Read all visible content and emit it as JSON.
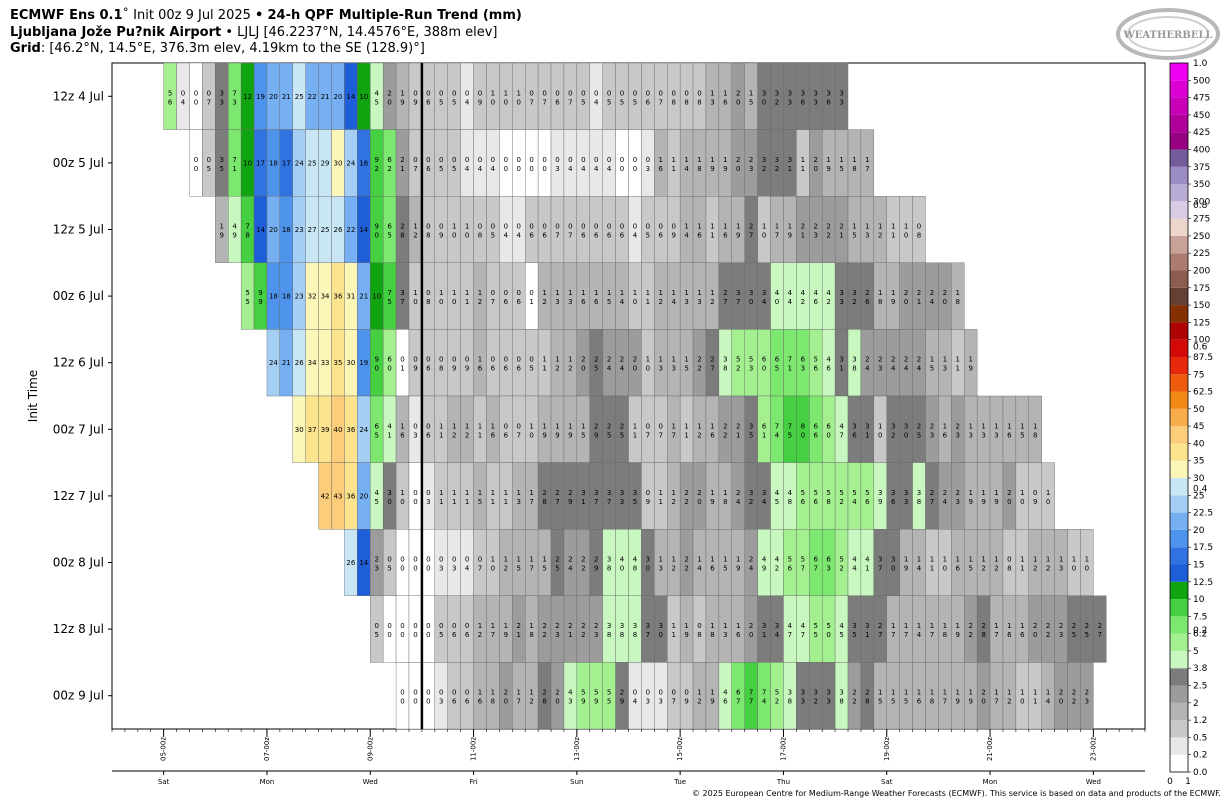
{
  "header": {
    "model": "ECMWF Ens 0.1",
    "init": "Init 00z 9 Jul 2025",
    "sep": "•",
    "product": "24-h QPF Multiple-Run Trend (mm)",
    "location_name": "Ljubljana Jože Pu?nik Airport",
    "location_detail": "LJLJ [46.2237°N, 14.4576°E, 388m elev]",
    "grid_label": "Grid",
    "grid_detail": ": [46.2°N, 14.5°E, 376.3m elev, 4.19km to the SE (128.9)°]"
  },
  "logo_text": "WEATHERBELL",
  "copyright": "© 2025 European Centre for Medium-Range Weather Forecasts (ECMWF). This service is based on data and products of the ECMWF.",
  "chart_data": {
    "type": "heatmap",
    "ylabel": "Init Time",
    "y_rows": [
      "12z 4 Jul",
      "00z 5 Jul",
      "12z 5 Jul",
      "00z 6 Jul",
      "12z 6 Jul",
      "00z 7 Jul",
      "12z 7 Jul",
      "00z 8 Jul",
      "12z 8 Jul",
      "00z 9 Jul"
    ],
    "x_ticks": [
      "05-00z",
      "07-00z",
      "09-00z",
      "11-00z",
      "13-00z",
      "15-00z",
      "17-00z",
      "19-00z",
      "21-00z",
      "23-00z"
    ],
    "x_days": [
      "Sat",
      "Mon",
      "Wed",
      "Fri",
      "Sun",
      "Tue",
      "Thu",
      "Sat",
      "Mon",
      "Wed"
    ],
    "x_step_hours": 6,
    "current_init": "00z 9 Jul",
    "rows": [
      {
        "start": 4,
        "values": [
          5.6,
          0.4,
          0,
          0.7,
          3.3,
          7.3,
          12,
          19,
          20,
          21,
          25,
          22,
          21,
          20,
          14,
          10,
          4.5,
          2,
          1.9,
          0.9,
          0.6,
          0.5,
          0.5,
          0.4,
          0.9,
          1,
          1,
          1,
          0.7,
          0.7,
          0.6,
          0.7,
          0.5,
          0.4,
          0.5,
          0.5,
          0.5,
          0.6,
          0.7,
          0.8,
          0.8,
          0.8,
          1.3,
          1.6,
          2,
          1.5,
          3,
          3.2,
          3.3,
          3.6,
          3.3,
          3.6,
          3.3
        ]
      },
      {
        "start": 6,
        "values": [
          0,
          0.5,
          3.5,
          7.1,
          10,
          17,
          18,
          17,
          24,
          25,
          29,
          30,
          24,
          16,
          9.2,
          6.2,
          2.1,
          0.7,
          0.6,
          0.5,
          0.5,
          0.4,
          0.4,
          0.4,
          0,
          0,
          0,
          0,
          0.3,
          0.4,
          0.4,
          0.4,
          0.4,
          0,
          0,
          0.3,
          1.6,
          1.1,
          1.4,
          1.8,
          1.9,
          1.9,
          2,
          2.3,
          3.2,
          3.2,
          3.1,
          1.1,
          2,
          1.9,
          1.5,
          1.8,
          1.7
        ]
      },
      {
        "start": 8,
        "values": [
          1.9,
          4.9,
          7.8,
          14,
          20,
          18,
          23,
          27,
          25,
          26,
          22,
          14,
          9,
          6.5,
          2.8,
          1.2,
          0.8,
          0.9,
          1,
          1,
          0.8,
          0.5,
          0.4,
          0.4,
          0.6,
          0.6,
          0.7,
          0.7,
          0.6,
          0.6,
          0.6,
          0.6,
          0.4,
          0.5,
          0.6,
          0.9,
          1.4,
          1.6,
          1.1,
          1.6,
          1.9,
          2.7,
          1,
          1.7,
          1.9,
          2.1,
          2.3,
          2.2,
          2.1,
          1.5,
          1.3,
          1.2,
          1.1,
          1,
          0.8
        ]
      },
      {
        "start": 10,
        "values": [
          5.5,
          9.9,
          18,
          18,
          23,
          32,
          34,
          36,
          31,
          21,
          10,
          7.5,
          3.7,
          1,
          0.8,
          1,
          1,
          1.1,
          1.2,
          0.7,
          0.6,
          0.6,
          0.1,
          1.2,
          1.3,
          1.3,
          1.6,
          1.6,
          1.5,
          1.4,
          1,
          1.1,
          1.2,
          1.4,
          1.3,
          1.3,
          1.2,
          2.7,
          3.7,
          3,
          3.4,
          4,
          4.4,
          4.2,
          4.6,
          4.2,
          3.3,
          3.2,
          2.6,
          1.8,
          1.9,
          2,
          2.1,
          2.4,
          2,
          1.8
        ]
      },
      {
        "start": 12,
        "values": [
          24,
          21,
          26,
          34,
          33,
          35,
          30,
          19,
          9,
          6,
          0.1,
          0.9,
          0.6,
          0.8,
          0.9,
          0.9,
          1.6,
          0.6,
          0.6,
          0.6,
          0.5,
          1.1,
          1.2,
          1.2,
          2,
          2.5,
          2.4,
          2.4,
          2,
          1,
          1.3,
          1.3,
          1.5,
          2.2,
          2.7,
          3.8,
          5.2,
          5.3,
          6,
          6.5,
          7.1,
          6.3,
          5.6,
          4.6,
          3.1,
          3.8,
          2.4,
          2.3,
          2.4,
          2.4,
          2.4,
          1.5,
          1.3,
          1.1,
          1.9
        ]
      },
      {
        "start": 14,
        "values": [
          30,
          37,
          39,
          40,
          36,
          24,
          6.5,
          4.1,
          1.6,
          0.3,
          0.6,
          1.1,
          1.2,
          1.2,
          1.1,
          1.6,
          0.6,
          0.7,
          1,
          1.9,
          1.9,
          1.9,
          1.5,
          2.9,
          2.5,
          2.5,
          1.1,
          0.7,
          0.7,
          1.7,
          1.1,
          1.2,
          1.6,
          2.2,
          2.1,
          3.5,
          6.1,
          7.4,
          7.5,
          8,
          6.6,
          6,
          4.7,
          3.6,
          3.1,
          1,
          3.2,
          3,
          2.5,
          2.3,
          1.6,
          2.3,
          1.3,
          1.3,
          1.3,
          1.6,
          1.5,
          1.8
        ]
      },
      {
        "start": 16,
        "values": [
          42,
          43,
          36,
          20,
          4.5,
          3,
          1,
          0,
          0.3,
          1.1,
          1.1,
          1.1,
          1.5,
          1.1,
          1.1,
          1.3,
          1.7,
          2.8,
          2.7,
          2.9,
          3.1,
          3.7,
          3.7,
          3.3,
          3.5,
          0.9,
          1.1,
          1.2,
          2.2,
          2,
          1.9,
          1.8,
          2.4,
          3.2,
          3.4,
          4.5,
          4.8,
          5.6,
          5.6,
          5.8,
          5.2,
          5.4,
          5.6,
          3.9,
          3.6,
          3.3,
          3.8,
          2.7,
          2.4,
          2.3,
          1.9,
          1.9,
          1.9,
          2,
          1,
          0.9,
          1
        ]
      },
      {
        "start": 18,
        "values": [
          26,
          14,
          2.3,
          0.5,
          0,
          0,
          0,
          0.3,
          0.3,
          0.4,
          0.7,
          1,
          1.2,
          1.5,
          1.7,
          1.5,
          2.5,
          2.4,
          2.2,
          2.9,
          3.8,
          4,
          4.8,
          3,
          1.3,
          1.2,
          2.2,
          1.4,
          1.6,
          1.5,
          1.9,
          2.4,
          4.9,
          4.2,
          5.6,
          5.7,
          6.7,
          6.3,
          5.2,
          4.4,
          4.1,
          3.7,
          3,
          1.9,
          1.4,
          1.1,
          1,
          1.6,
          1.5,
          1.2,
          1.2,
          0.8,
          1.1,
          1.2,
          1.2,
          1.3,
          1,
          1
        ]
      },
      {
        "start": 20,
        "values": [
          0.5,
          0,
          0,
          0,
          0,
          0.5,
          0.6,
          0.6,
          1.2,
          1.7,
          1.9,
          2.1,
          1.8,
          2.2,
          2.3,
          2.1,
          2.2,
          2.3,
          3.8,
          3.8,
          3.8,
          3.7,
          3,
          1.1,
          1.9,
          0.8,
          1.8,
          1.3,
          1.6,
          2,
          3.1,
          3.4,
          4.7,
          4.7,
          5.5,
          5,
          4.5,
          3.5,
          3.1,
          2.7,
          1.7,
          1.7,
          1.4,
          1.7,
          1.8,
          1.9,
          2.2,
          2.8,
          1.7,
          1.6,
          1.6,
          2,
          2.2,
          2.3,
          2.5,
          2.5,
          2.7
        ]
      },
      {
        "start": 22,
        "values": [
          0,
          0,
          0,
          0.3,
          0.6,
          0.6,
          1.6,
          1.8,
          2,
          1.7,
          1.2,
          2.8,
          2,
          4.3,
          5.9,
          5.9,
          5.5,
          2.9,
          0.4,
          0.3,
          0.3,
          0.7,
          0.9,
          1.2,
          1.9,
          4.6,
          6.7,
          7.7,
          7.4,
          5.2,
          3.8,
          3.3,
          3.2,
          3.3,
          3.8,
          2.2,
          2.8,
          1.5,
          1.5,
          1.5,
          1.6,
          1.8,
          1.7,
          1.9,
          1.9,
          2,
          1.7,
          1.2,
          1,
          1.1,
          1.4,
          2,
          2.2,
          2.3
        ]
      }
    ],
    "colorbar": {
      "levels": [
        0,
        0.2,
        0.5,
        1.2,
        2,
        2.5,
        3.8,
        5,
        6.2,
        7.5,
        10,
        12.5,
        15,
        17.5,
        20,
        22.5,
        25,
        30,
        35,
        40,
        45,
        50,
        62.5,
        75,
        87.5,
        100,
        125,
        150,
        175,
        200,
        225,
        250,
        275,
        300,
        350,
        375,
        400,
        425,
        450,
        475,
        500
      ],
      "colors": [
        "#ffffff",
        "#e8e8e8",
        "#c8c8c8",
        "#b4b4b4",
        "#9c9c9c",
        "#7c7c7c",
        "#c8f8c0",
        "#a4f090",
        "#7ce870",
        "#44d040",
        "#10a410",
        "#1e5ed8",
        "#3072e0",
        "#4e94ec",
        "#76b0f2",
        "#a4cef4",
        "#c8e6f4",
        "#fcf6b8",
        "#fce48e",
        "#fccd7a",
        "#f8ad4c",
        "#f48a16",
        "#ee5a0e",
        "#e8280c",
        "#d40a08",
        "#ae0404",
        "#843000",
        "#644034",
        "#8c5c4e",
        "#ac7c70",
        "#c8a298",
        "#ecd6cc",
        "#d8cce4",
        "#b8acd4",
        "#9c8cc4",
        "#745c9c",
        "#980082",
        "#b0009a",
        "#c800b8",
        "#dc00d4",
        "#f000f0"
      ],
      "tick_labels": [
        "0.0",
        "0.2",
        "0.5",
        "1.2",
        "2",
        "2.5",
        "3.8",
        "5",
        "6.2",
        "7.5",
        "10",
        "12.5",
        "15",
        "17.5",
        "20",
        "22.5",
        "25",
        "30",
        "35",
        "40",
        "45",
        "50",
        "62.5",
        "75",
        "87.5",
        "100",
        "125",
        "150",
        "175",
        "200",
        "225",
        "250",
        "275",
        "300",
        "350",
        "375",
        "400",
        "425",
        "450",
        "475",
        "500"
      ],
      "overlay_labels": [
        "0.2",
        "0.4",
        "0.6",
        "0.8",
        "1.0"
      ],
      "axis_labels": [
        "0",
        "1"
      ]
    }
  }
}
